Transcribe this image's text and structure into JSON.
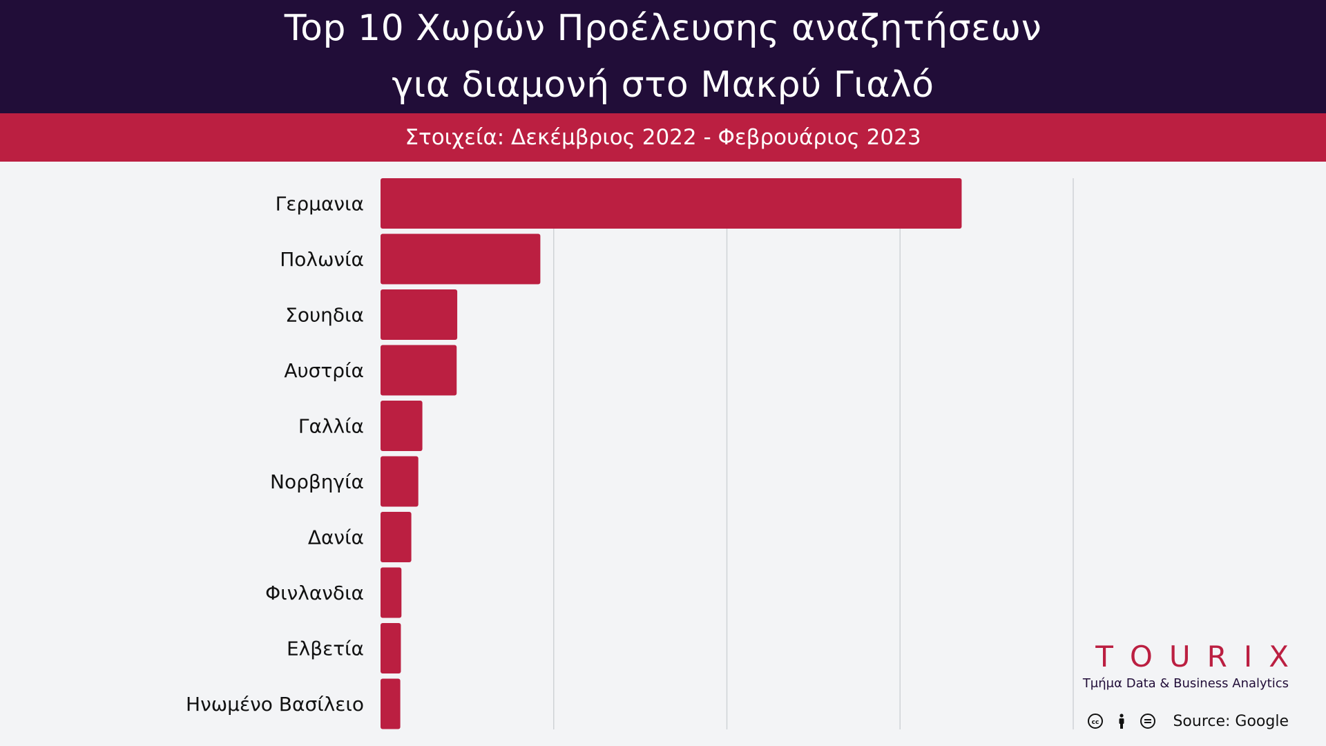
{
  "header": {
    "title_line1": "Top 10 Χωρών Προέλευσης αναζητήσεων",
    "title_line2": "για διαμονή στο Μακρύ Γιαλό",
    "subtitle": "Στοιχεία: Δεκέμβριος 2022 - Φεβρουάριος 2023"
  },
  "colors": {
    "header_bg": "#210d38",
    "accent": "#bb1f41",
    "background": "#f3f4f6",
    "gridline": "#cfd2d6"
  },
  "brand": {
    "logo": "TOURIX",
    "tagline": "Τμήμα Data & Business Analytics"
  },
  "footer": {
    "license_icons": [
      "cc-icon",
      "by-person-icon",
      "nd-equals-icon"
    ],
    "source": "Source: Google"
  },
  "chart_data": {
    "type": "bar",
    "orientation": "horizontal",
    "categories": [
      "Γερμανια",
      "Πολωνία",
      "Σουηδια",
      "Αυστρία",
      "Γαλλία",
      "Νορβηγία",
      "Δανία",
      "Φινλανδια",
      "Ελβετία",
      "Ηνωμένο Βασίλειο"
    ],
    "values": [
      100,
      27.5,
      13.2,
      13.1,
      7.2,
      6.5,
      5.3,
      3.6,
      3.5,
      3.4
    ],
    "xlim": [
      0,
      119.2
    ],
    "gridlines": [
      29.8,
      59.6,
      89.4,
      119.2
    ],
    "tick_labels_visible": false,
    "grid": true,
    "legend": "none",
    "bar_color": "#bb1f41"
  }
}
